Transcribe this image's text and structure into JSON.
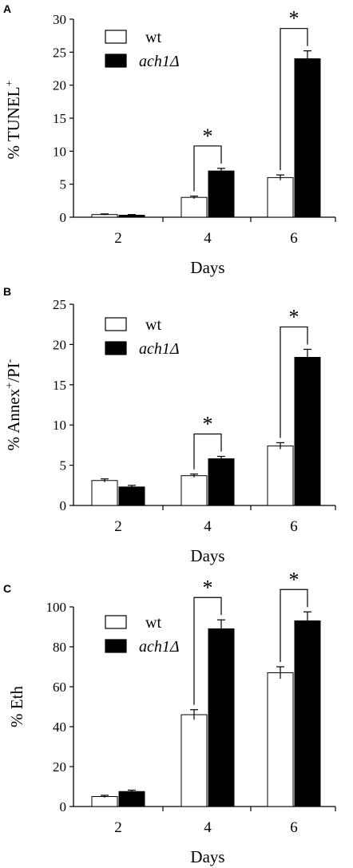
{
  "colors": {
    "wt": "#ffffff",
    "mutant": "#000000",
    "axis": "#000000"
  },
  "chart_data": [
    {
      "panel": "A",
      "type": "bar",
      "categories": [
        "2",
        "4",
        "6"
      ],
      "xlabel": "Days",
      "ylabel_main": "% TUNEL",
      "ylabel_sup": "+",
      "ylabel_after": "",
      "ylim": [
        0,
        30
      ],
      "yticks": [
        0,
        5,
        10,
        15,
        20,
        25,
        30
      ],
      "legend": [
        "wt",
        "ach1Δ"
      ],
      "legend_position": "top-left",
      "series": [
        {
          "name": "wt",
          "values": [
            0.4,
            3.0,
            6.0
          ],
          "errors": [
            0.1,
            0.2,
            0.4
          ]
        },
        {
          "name": "ach1Δ",
          "values": [
            0.3,
            7.0,
            24.0
          ],
          "errors": [
            0.1,
            0.4,
            1.2
          ]
        }
      ],
      "significance": [
        {
          "category": "4",
          "label": "*"
        },
        {
          "category": "6",
          "label": "*"
        }
      ]
    },
    {
      "panel": "B",
      "type": "bar",
      "categories": [
        "2",
        "4",
        "6"
      ],
      "xlabel": "Days",
      "ylabel_main": "% Annex",
      "ylabel_sup": "+",
      "ylabel_after": "/PI",
      "ylabel_sup2": "-",
      "ylim": [
        0,
        25
      ],
      "yticks": [
        0,
        5,
        10,
        15,
        20,
        25
      ],
      "legend": [
        "wt",
        "ach1Δ"
      ],
      "legend_position": "top-left",
      "series": [
        {
          "name": "wt",
          "values": [
            3.1,
            3.7,
            7.4
          ],
          "errors": [
            0.2,
            0.2,
            0.4
          ]
        },
        {
          "name": "ach1Δ",
          "values": [
            2.3,
            5.8,
            18.4
          ],
          "errors": [
            0.2,
            0.3,
            1.0
          ]
        }
      ],
      "significance": [
        {
          "category": "4",
          "label": "*"
        },
        {
          "category": "6",
          "label": "*"
        }
      ]
    },
    {
      "panel": "C",
      "type": "bar",
      "categories": [
        "2",
        "4",
        "6"
      ],
      "xlabel": "Days",
      "ylabel_main": "% Eth",
      "ylabel_sup": "",
      "ylabel_after": "",
      "ylim": [
        0,
        100
      ],
      "yticks": [
        0,
        20,
        40,
        60,
        80,
        100
      ],
      "legend": [
        "wt",
        "ach1Δ"
      ],
      "legend_position": "top-left",
      "series": [
        {
          "name": "wt",
          "values": [
            5,
            46,
            67
          ],
          "errors": [
            0.6,
            2.5,
            3.0
          ]
        },
        {
          "name": "ach1Δ",
          "values": [
            7.5,
            89,
            93
          ],
          "errors": [
            0.7,
            4.5,
            4.5
          ]
        }
      ],
      "significance": [
        {
          "category": "4",
          "label": "*"
        },
        {
          "category": "6",
          "label": "*"
        }
      ]
    }
  ]
}
